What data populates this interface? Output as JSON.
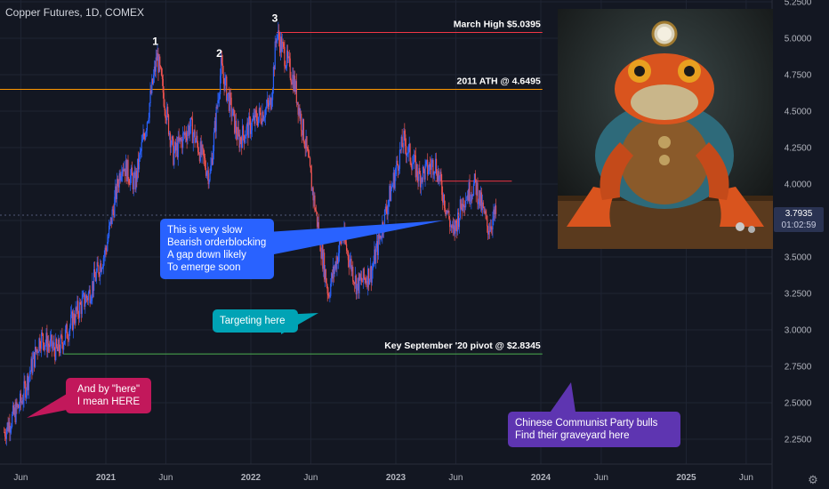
{
  "header": {
    "title": "Copper Futures, 1D, COMEX"
  },
  "chart_data": {
    "type": "candlestick",
    "symbol": "Copper Futures",
    "timeframe": "1D",
    "exchange": "COMEX",
    "ylim": [
      2.1,
      5.3
    ],
    "y_ticks": [
      "2.2500",
      "2.5000",
      "2.7500",
      "3.0000",
      "3.2500",
      "3.5000",
      "3.7500",
      "4.0000",
      "4.2500",
      "4.5000",
      "4.7500",
      "5.0000",
      "5.2500"
    ],
    "x_ticks": [
      "Jun",
      "2021",
      "Jun",
      "2022",
      "Jun",
      "2023",
      "Jun",
      "2024",
      "Jun",
      "2025",
      "Jun"
    ],
    "last_price": "3.7935",
    "countdown": "01:02:59",
    "price_path": [
      {
        "date": "2020-04-20",
        "close": 2.3
      },
      {
        "date": "2020-06-01",
        "close": 2.5
      },
      {
        "date": "2020-07-20",
        "close": 2.95
      },
      {
        "date": "2020-09-01",
        "close": 2.85
      },
      {
        "date": "2020-10-15",
        "close": 3.1
      },
      {
        "date": "2020-11-20",
        "close": 3.25
      },
      {
        "date": "2021-01-01",
        "close": 3.55
      },
      {
        "date": "2021-02-10",
        "close": 4.15
      },
      {
        "date": "2021-03-15",
        "close": 4.0
      },
      {
        "date": "2021-04-15",
        "close": 4.45
      },
      {
        "date": "2021-05-10",
        "close": 4.88
      },
      {
        "date": "2021-06-20",
        "close": 4.2
      },
      {
        "date": "2021-08-01",
        "close": 4.4
      },
      {
        "date": "2021-09-20",
        "close": 4.05
      },
      {
        "date": "2021-10-18",
        "close": 4.8
      },
      {
        "date": "2021-12-01",
        "close": 4.3
      },
      {
        "date": "2022-01-15",
        "close": 4.45
      },
      {
        "date": "2022-02-20",
        "close": 4.55
      },
      {
        "date": "2022-03-07",
        "close": 5.04
      },
      {
        "date": "2022-04-20",
        "close": 4.7
      },
      {
        "date": "2022-05-20",
        "close": 4.25
      },
      {
        "date": "2022-06-25",
        "close": 3.6
      },
      {
        "date": "2022-07-15",
        "close": 3.25
      },
      {
        "date": "2022-08-20",
        "close": 3.65
      },
      {
        "date": "2022-09-25",
        "close": 3.3
      },
      {
        "date": "2022-11-01",
        "close": 3.4
      },
      {
        "date": "2022-12-10",
        "close": 3.85
      },
      {
        "date": "2023-01-20",
        "close": 4.3
      },
      {
        "date": "2023-03-01",
        "close": 4.05
      },
      {
        "date": "2023-04-10",
        "close": 4.15
      },
      {
        "date": "2023-05-25",
        "close": 3.65
      },
      {
        "date": "2023-06-20",
        "close": 3.9
      },
      {
        "date": "2023-07-20",
        "close": 4.0
      },
      {
        "date": "2023-08-20",
        "close": 3.7
      },
      {
        "date": "2023-09-10",
        "close": 3.79
      }
    ],
    "wave_labels": [
      {
        "label": "1",
        "date": "2021-05-10",
        "price": 4.88
      },
      {
        "label": "2",
        "date": "2021-10-18",
        "price": 4.8
      },
      {
        "label": "3",
        "date": "2022-03-07",
        "price": 5.04
      }
    ],
    "levels": [
      {
        "name": "March High",
        "label": "March High $5.0395",
        "price": 5.0395,
        "color": "#f23645",
        "from": "2022-03-07",
        "to": "2024-01-05"
      },
      {
        "name": "2011 ATH",
        "label": "2011 ATH @ 4.6495",
        "price": 4.6495,
        "color": "#ff9800",
        "from": "2020-01-01",
        "to": "2024-01-05"
      },
      {
        "name": "Key September '20 pivot",
        "label": "Key September '20 pivot @ $2.8345",
        "price": 2.8345,
        "color": "#4caf50",
        "from": "2020-09-15",
        "to": "2024-01-05"
      },
      {
        "name": "resistance",
        "label": "",
        "price": 4.02,
        "color": "#f23645",
        "from": "2023-04-10",
        "to": "2023-10-20"
      }
    ]
  },
  "annotations": {
    "blue": "This is very slow\nBearish orderblocking\nA gap down likely\nTo emerge soon",
    "teal": "Targeting here",
    "red": "And by \"here\"\nI mean HERE",
    "purple": "Chinese Communist Party bulls\nFind their graveyard here"
  },
  "colors": {
    "background": "#131722",
    "up": "#2962ff",
    "down": "#ef5350",
    "grid": "#1f2433",
    "axis_text": "#b2b5be"
  },
  "image": {
    "subject": "toad-steampunk-illustration"
  }
}
